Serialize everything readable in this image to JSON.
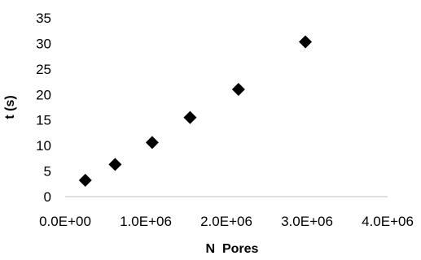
{
  "chart_data": {
    "type": "scatter",
    "title": "",
    "xlabel": "N  Pores",
    "ylabel": "t (s)",
    "xlim": [
      0,
      4000000
    ],
    "ylim": [
      0,
      35
    ],
    "x_ticks": [
      "0.0E+00",
      "1.0E+06",
      "2.0E+06",
      "3.0E+06",
      "4.0E+06"
    ],
    "y_ticks": [
      "0",
      "5",
      "10",
      "15",
      "20",
      "25",
      "30",
      "35"
    ],
    "grid": false,
    "legend": "none",
    "marker": "diamond",
    "marker_color": "#000000",
    "series": [
      {
        "x": [
          250000,
          620000,
          1080000,
          1550000,
          2150000,
          2980000
        ],
        "y": [
          3.2,
          6.3,
          10.6,
          15.5,
          21.0,
          30.3
        ]
      }
    ]
  }
}
